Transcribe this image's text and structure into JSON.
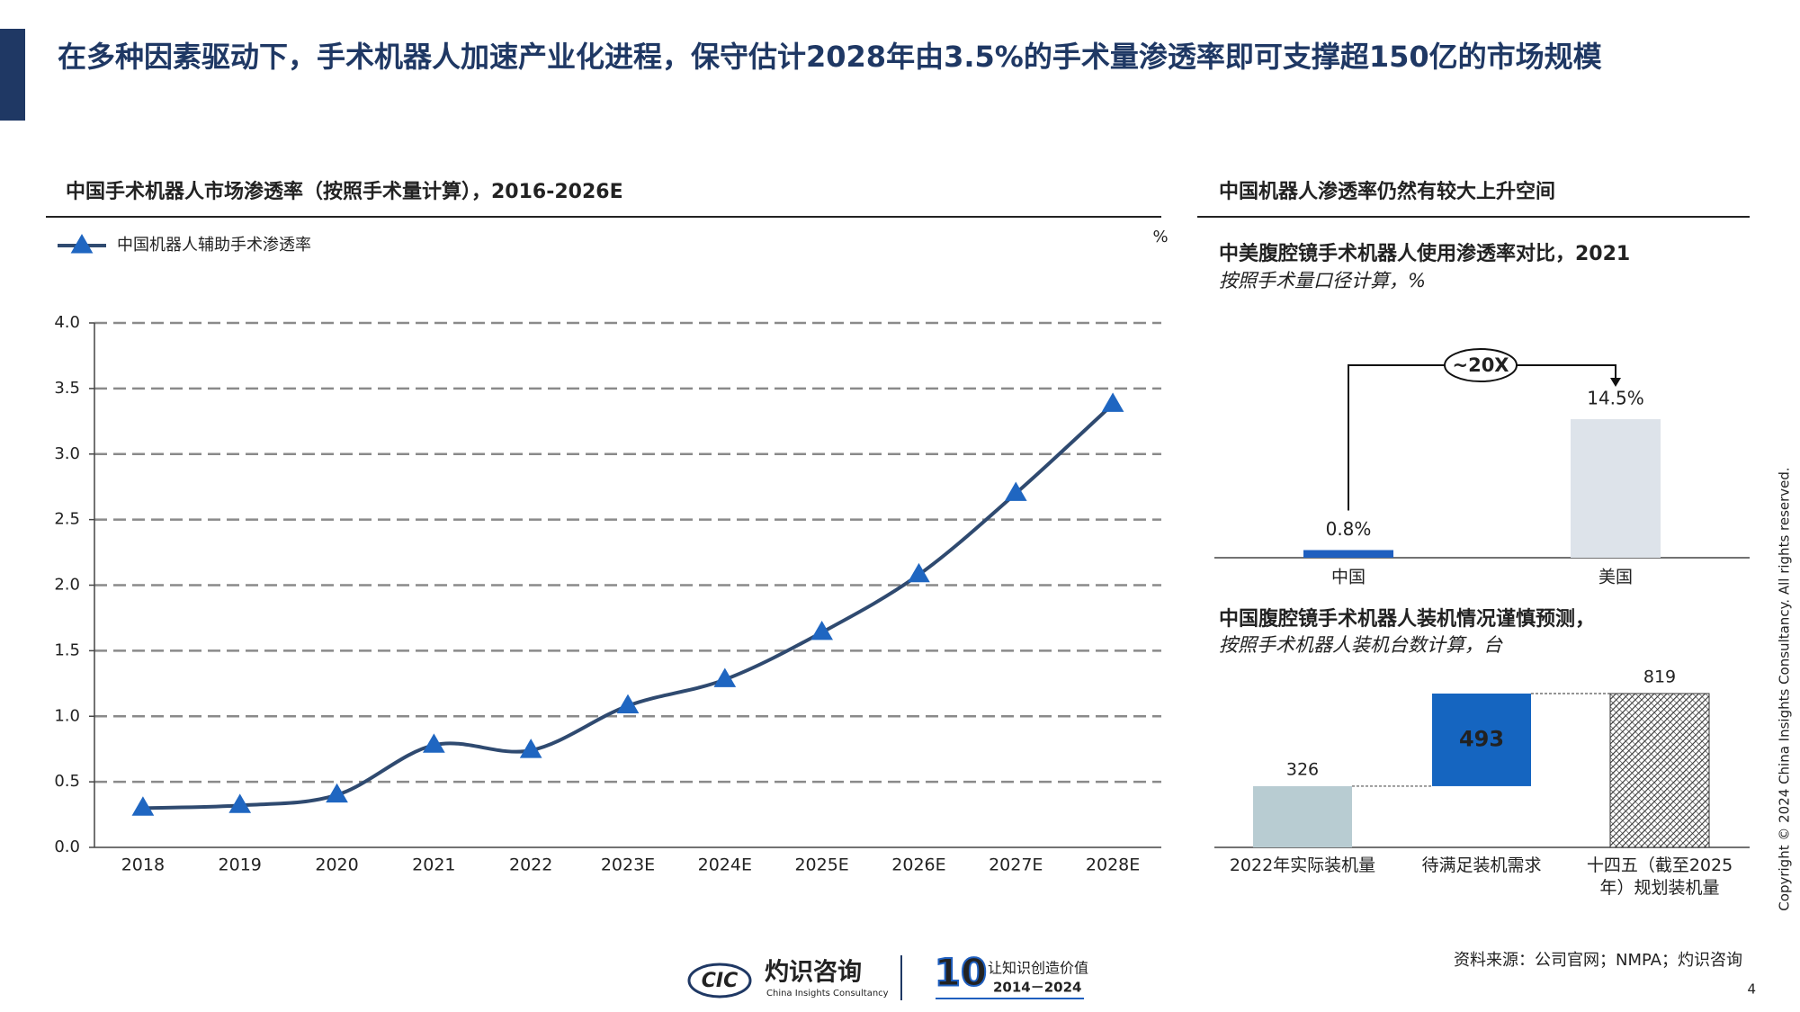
{
  "title": "在多种因素驱动下，手术机器人加速产业化进程，保守估计2028年由3.5%的手术量渗透率即可支撑超150亿的市场规模",
  "source": "资料来源：公司官网；NMPA；灼识咨询",
  "copyright": "Copyright © 2024 China Insights Consultancy. All rights reserved.",
  "page_number": 4,
  "logo": {
    "abbr": "CIC",
    "brand": "灼识咨询",
    "brand_en": "China Insights Consultancy",
    "mark": "10",
    "slogan": "让知识创造价值",
    "years": "2014－2024"
  },
  "chart_data": [
    {
      "type": "line",
      "title": "中国手术机器人市场渗透率（按照手术量计算），2016-2026E",
      "y_unit": "%",
      "categories": [
        "2018",
        "2019",
        "2020",
        "2021",
        "2022",
        "2023E",
        "2024E",
        "2025E",
        "2026E",
        "2027E",
        "2028E"
      ],
      "series": [
        {
          "name": "中国机器人辅助手术渗透率",
          "color": "#2f4a70",
          "marker_color": "#1f66c1",
          "values": [
            0.3,
            0.32,
            0.4,
            0.78,
            0.74,
            1.08,
            1.28,
            1.64,
            2.08,
            2.7,
            3.38
          ]
        }
      ],
      "ylim": [
        0,
        4
      ],
      "yticks": [
        {
          "value": 0,
          "label": "0.0"
        },
        0.5,
        {
          "value": 1,
          "label": "1.0"
        },
        1.5,
        {
          "value": 2,
          "label": "2.0"
        },
        2.5,
        {
          "value": 3,
          "label": "3.0"
        },
        3.5,
        {
          "value": 4,
          "label": "4.0"
        }
      ],
      "grid": true
    },
    {
      "type": "bar",
      "section_title": "中国机器人渗透率仍然有较大上升空间",
      "title": "中美腹腔镜手术机器人使用渗透率对比，2021",
      "subtitle": "按照手术量口径计算，%",
      "categories": [
        "中国",
        "美国"
      ],
      "values": [
        0.8,
        14.5
      ],
      "value_labels": [
        "0.8%",
        "14.5%"
      ],
      "colors": [
        "#1f5fbf",
        "#dde3ea"
      ],
      "annotation": "~20X"
    },
    {
      "type": "waterfall",
      "title": "中国腹腔镜手术机器人装机情况谨慎预测，",
      "subtitle": "按照手术机器人装机台数计算，台",
      "categories": [
        "2022年实际装机量",
        "待满足装机需求",
        "十四五（截至2025年）规划装机量"
      ],
      "values": [
        326,
        493,
        819
      ],
      "colors": [
        "#b8ccd2",
        "#1565c0",
        "#333333"
      ]
    }
  ]
}
